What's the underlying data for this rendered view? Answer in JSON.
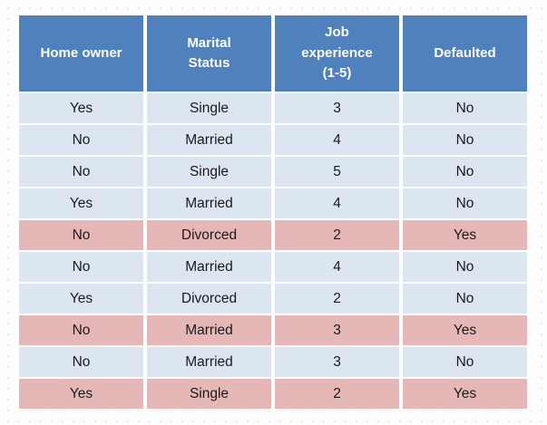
{
  "chart_data": {
    "type": "table",
    "columns": [
      "Home owner",
      "Marital Status",
      "Job experience (1-5)",
      "Defaulted"
    ],
    "rows": [
      [
        "Yes",
        "Single",
        "3",
        "No"
      ],
      [
        "No",
        "Married",
        "4",
        "No"
      ],
      [
        "No",
        "Single",
        "5",
        "No"
      ],
      [
        "Yes",
        "Married",
        "4",
        "No"
      ],
      [
        "No",
        "Divorced",
        "2",
        "Yes"
      ],
      [
        "No",
        "Married",
        "4",
        "No"
      ],
      [
        "Yes",
        "Divorced",
        "2",
        "No"
      ],
      [
        "No",
        "Married",
        "3",
        "Yes"
      ],
      [
        "No",
        "Married",
        "3",
        "No"
      ],
      [
        "Yes",
        "Single",
        "2",
        "Yes"
      ]
    ],
    "colors": {
      "header_background": "#4F81BD",
      "header_text": "#FFFFFF",
      "row_background": "#DCE6F1",
      "defaulted_row_background": "#E5B8B7",
      "body_text": "#1A1A1A"
    }
  }
}
